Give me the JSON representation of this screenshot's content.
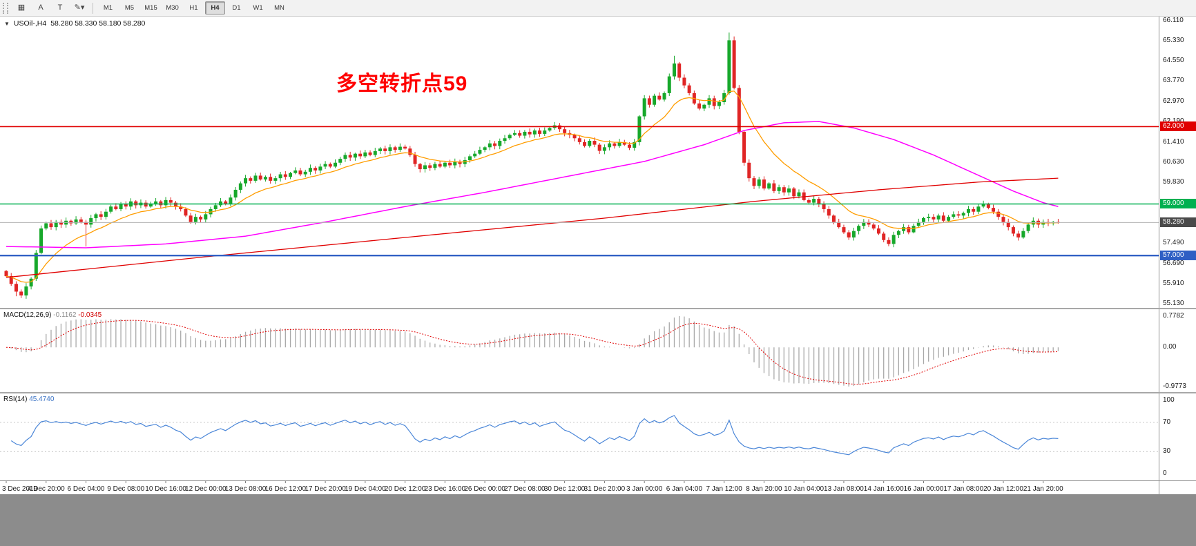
{
  "toolbar": {
    "tools": [
      {
        "name": "chart-mode-icon",
        "glyph": "▦"
      },
      {
        "name": "cursor-tool-button",
        "glyph": "A"
      },
      {
        "name": "text-tool-button",
        "glyph": "T"
      },
      {
        "name": "drawing-tools-dropdown",
        "glyph": "✎▾"
      }
    ],
    "timeframes": [
      "M1",
      "M5",
      "M15",
      "M30",
      "H1",
      "H4",
      "D1",
      "W1",
      "MN"
    ],
    "active_timeframe": "H4"
  },
  "chart": {
    "collapse_glyph": "▼",
    "symbol_label": "USOil-,H4",
    "ohlc_label": "58.280 58.330 58.180 58.280",
    "annotation": {
      "text": "多空转折点59",
      "color": "#ff0000"
    },
    "price_scale": [
      "66.110",
      "65.330",
      "64.550",
      "63.770",
      "62.970",
      "62.190",
      "61.410",
      "60.630",
      "59.830",
      "59.050",
      "58.270",
      "57.490",
      "56.690",
      "55.910",
      "55.130"
    ],
    "price_tags": [
      {
        "label": "62.000",
        "price": 62.0,
        "bg": "#e00000"
      },
      {
        "label": "59.000",
        "price": 59.0,
        "bg": "#00b050"
      },
      {
        "label": "58.280",
        "price": 58.28,
        "bg": "#4a4a4a"
      },
      {
        "label": "57.000",
        "price": 57.0,
        "bg": "#2f5fc4"
      }
    ]
  },
  "macd": {
    "title": "MACD(12,26,9)",
    "main_value": "-0.1162",
    "signal_value": "-0.0345",
    "scale": {
      "top": "0.7782",
      "zero": "0.00",
      "bottom": "-0.9773"
    }
  },
  "rsi": {
    "title": "RSI(14)",
    "value": "45.4740",
    "scale_top": "100",
    "scale_bottom": "0",
    "levels": [
      {
        "value": 70,
        "label": "70"
      },
      {
        "value": 30,
        "label": "30"
      }
    ]
  },
  "time_axis": [
    "3 Dec 2019",
    "4 Dec 20:00",
    "6 Dec 04:00",
    "9 Dec 08:00",
    "10 Dec 16:00",
    "12 Dec 00:00",
    "13 Dec 08:00",
    "16 Dec 12:00",
    "17 Dec 20:00",
    "19 Dec 04:00",
    "20 Dec 12:00",
    "23 Dec 16:00",
    "26 Dec 00:00",
    "27 Dec 08:00",
    "30 Dec 12:00",
    "31 Dec 20:00",
    "3 Jan 00:00",
    "6 Jan 04:00",
    "7 Jan 12:00",
    "8 Jan 20:00",
    "10 Jan 04:00",
    "13 Jan 08:00",
    "14 Jan 16:00",
    "16 Jan 00:00",
    "17 Jan 08:00",
    "20 Jan 12:00",
    "21 Jan 20:00"
  ],
  "chart_data": {
    "type": "candlestick",
    "symbol": "USOil",
    "timeframe": "H4",
    "current_ohlc": {
      "open": 58.28,
      "high": 58.33,
      "low": 58.18,
      "close": 58.28
    },
    "price_range": [
      55.13,
      66.11
    ],
    "first_open": 56.4,
    "closes": [
      56.2,
      55.9,
      55.6,
      55.45,
      55.8,
      56.1,
      57.1,
      58.05,
      58.25,
      58.1,
      58.3,
      58.2,
      58.35,
      58.25,
      58.4,
      58.3,
      58.2,
      58.45,
      58.6,
      58.5,
      58.7,
      58.9,
      58.8,
      59.0,
      58.9,
      59.1,
      58.95,
      59.05,
      58.9,
      59.0,
      59.1,
      58.95,
      59.15,
      59.05,
      58.9,
      58.8,
      58.55,
      58.3,
      58.5,
      58.4,
      58.6,
      58.8,
      58.95,
      59.1,
      59.0,
      59.25,
      59.55,
      59.8,
      60.0,
      59.9,
      60.1,
      59.95,
      60.05,
      59.9,
      60.0,
      60.15,
      60.05,
      60.2,
      60.3,
      60.15,
      60.25,
      60.4,
      60.3,
      60.45,
      60.55,
      60.45,
      60.6,
      60.75,
      60.9,
      60.8,
      60.95,
      60.85,
      61.0,
      60.9,
      61.05,
      61.15,
      61.05,
      61.2,
      61.1,
      61.22,
      61.15,
      60.9,
      60.55,
      60.35,
      60.5,
      60.4,
      60.55,
      60.45,
      60.6,
      60.5,
      60.65,
      60.55,
      60.7,
      60.85,
      60.95,
      61.1,
      61.2,
      61.35,
      61.25,
      61.45,
      61.55,
      61.68,
      61.75,
      61.65,
      61.8,
      61.7,
      61.85,
      61.72,
      61.85,
      61.95,
      62.05,
      61.9,
      61.75,
      61.68,
      61.55,
      61.4,
      61.25,
      61.45,
      61.3,
      61.06,
      61.2,
      61.35,
      61.25,
      61.4,
      61.3,
      61.18,
      61.4,
      62.4,
      63.1,
      62.85,
      63.2,
      63.05,
      63.3,
      63.95,
      64.45,
      63.9,
      63.6,
      63.3,
      62.9,
      62.7,
      62.85,
      63.1,
      62.8,
      62.95,
      63.3,
      65.35,
      63.5,
      61.8,
      60.6,
      60.0,
      59.7,
      59.95,
      59.6,
      59.8,
      59.5,
      59.65,
      59.45,
      59.6,
      59.3,
      59.45,
      59.15,
      59.05,
      59.2,
      59.0,
      58.8,
      58.55,
      58.3,
      58.1,
      57.9,
      57.7,
      57.95,
      58.15,
      58.3,
      58.2,
      58.05,
      57.85,
      57.6,
      57.45,
      57.8,
      57.95,
      58.1,
      57.9,
      58.15,
      58.3,
      58.45,
      58.5,
      58.4,
      58.55,
      58.35,
      58.5,
      58.6,
      58.55,
      58.65,
      58.8,
      58.7,
      58.9,
      59.0,
      58.85,
      58.7,
      58.5,
      58.3,
      58.1,
      57.85,
      57.7,
      57.95,
      58.2,
      58.35,
      58.2,
      58.3,
      58.25,
      58.3,
      58.28
    ],
    "wick_overrides": {
      "2": {
        "l": 55.42
      },
      "3": {
        "l": 55.35
      },
      "16": {
        "l": 57.35
      },
      "134": {
        "h": 64.75
      },
      "145": {
        "h": 65.65
      },
      "146": {
        "h": 65.5
      },
      "177": {
        "l": 57.36
      },
      "203": {
        "l": 57.58
      }
    },
    "hlines": [
      {
        "price": 62.0,
        "color": "#e00000",
        "width": 1.6
      },
      {
        "price": 59.0,
        "color": "#00b050",
        "width": 1.6
      },
      {
        "price": 57.0,
        "color": "#2f5fc4",
        "width": 2.4
      },
      {
        "price": 58.28,
        "color": "#b3b3b3",
        "width": 1
      }
    ],
    "moving_averages": {
      "fast": {
        "type": "ema",
        "period": 13,
        "color": "#ff9d00"
      },
      "mid": {
        "color": "#ff00ff",
        "points": [
          [
            0,
            57.35
          ],
          [
            16,
            57.3
          ],
          [
            32,
            57.45
          ],
          [
            48,
            57.75
          ],
          [
            64,
            58.3
          ],
          [
            80,
            58.9
          ],
          [
            96,
            59.45
          ],
          [
            112,
            60.05
          ],
          [
            128,
            60.65
          ],
          [
            140,
            61.3
          ],
          [
            148,
            61.85
          ],
          [
            156,
            62.15
          ],
          [
            163,
            62.2
          ],
          [
            170,
            61.95
          ],
          [
            178,
            61.5
          ],
          [
            186,
            60.9
          ],
          [
            194,
            60.2
          ],
          [
            202,
            59.5
          ],
          [
            208,
            59.05
          ],
          [
            211,
            58.9
          ]
        ]
      },
      "slow": {
        "color": "#e00000",
        "points": [
          [
            0,
            56.15
          ],
          [
            40,
            56.95
          ],
          [
            80,
            57.7
          ],
          [
            120,
            58.45
          ],
          [
            150,
            59.1
          ],
          [
            175,
            59.55
          ],
          [
            195,
            59.85
          ],
          [
            211,
            60.0
          ]
        ]
      }
    },
    "indicators": {
      "macd": {
        "fast": 12,
        "slow": 26,
        "signal": 9,
        "scale_max": 0.7782,
        "scale_min": -0.9773,
        "hist_color": "#a8a8a8",
        "signal_color": "#e00000"
      },
      "rsi": {
        "period": 14,
        "color": "#4a86d8",
        "level_color": "#c3c3c3"
      }
    },
    "candle_colors": {
      "up": "#17a82b",
      "down": "#e02525"
    }
  }
}
